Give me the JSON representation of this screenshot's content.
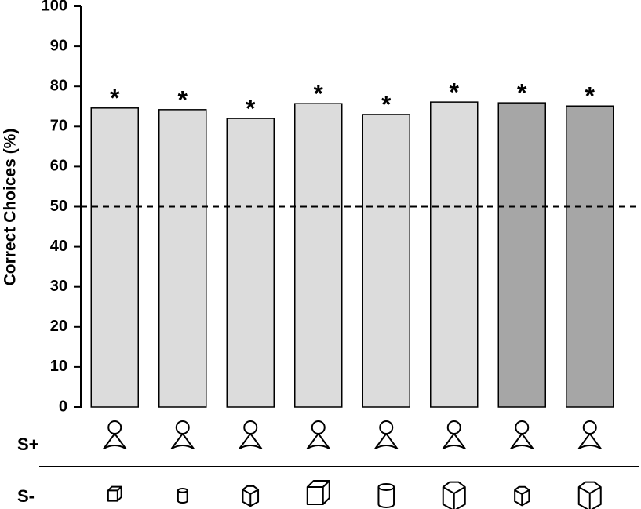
{
  "chart_data": {
    "type": "bar",
    "ylabel": "Correct Choices (%)",
    "categories": [
      null,
      null,
      null,
      null,
      null,
      null,
      null,
      null
    ],
    "values": [
      74.6,
      74.2,
      72.0,
      75.7,
      73.0,
      76.1,
      75.9,
      75.1
    ],
    "colors": [
      "#dcdcdc",
      "#dcdcdc",
      "#dcdcdc",
      "#dcdcdc",
      "#dcdcdc",
      "#dcdcdc",
      "#a6a6a6",
      "#a6a6a6"
    ],
    "annotations": [
      "*",
      "*",
      "*",
      "*",
      "*",
      "*",
      "*",
      "*"
    ],
    "reference_line": 50,
    "ylim": [
      0,
      100
    ],
    "yticks": [
      0,
      10,
      20,
      30,
      40,
      50,
      60,
      70,
      80,
      90,
      100
    ],
    "grid": false,
    "row_labels": [
      "S+",
      "S-"
    ]
  }
}
